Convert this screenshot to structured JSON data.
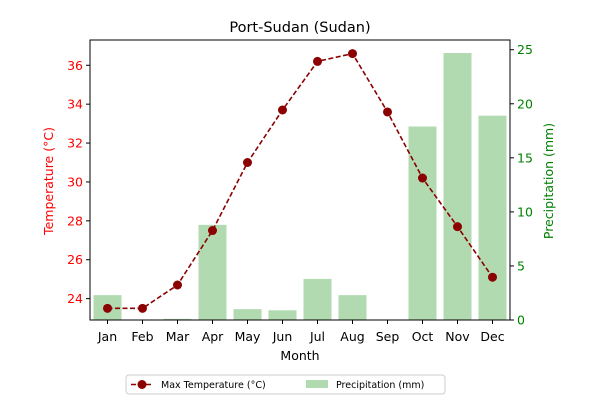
{
  "chart_data": {
    "type": "bar+line",
    "title": "Port-Sudan (Sudan)",
    "xlabel": "Month",
    "categories": [
      "Jan",
      "Feb",
      "Mar",
      "Apr",
      "May",
      "Jun",
      "Jul",
      "Aug",
      "Sep",
      "Oct",
      "Nov",
      "Dec"
    ],
    "series": [
      {
        "name": "Max Temperature (°C)",
        "kind": "line",
        "axis": "left",
        "color": "#8b0000",
        "values": [
          23.5,
          23.5,
          24.7,
          27.5,
          31.0,
          33.7,
          36.2,
          36.6,
          33.6,
          30.2,
          27.7,
          25.1
        ]
      },
      {
        "name": "Precipitation (mm)",
        "kind": "bar",
        "axis": "right",
        "color": "#b2dab1",
        "values": [
          2.3,
          0,
          0.1,
          8.8,
          1.0,
          0.9,
          3.8,
          2.3,
          0,
          17.9,
          24.7,
          18.9
        ]
      }
    ],
    "y_left": {
      "label": "Temperature (°C)",
      "color": "#ff0000",
      "range": [
        22.9,
        37.3
      ],
      "ticks": [
        24,
        26,
        28,
        30,
        32,
        34,
        36
      ]
    },
    "y_right": {
      "label": "Precipitation (mm)",
      "color": "#008000",
      "range": [
        0,
        25.9
      ],
      "ticks": [
        0,
        5,
        10,
        15,
        20,
        25
      ]
    },
    "legend": {
      "placement": "bottom-center",
      "entries": [
        "Max Temperature (°C)",
        "Precipitation (mm)"
      ]
    },
    "grid": false
  }
}
